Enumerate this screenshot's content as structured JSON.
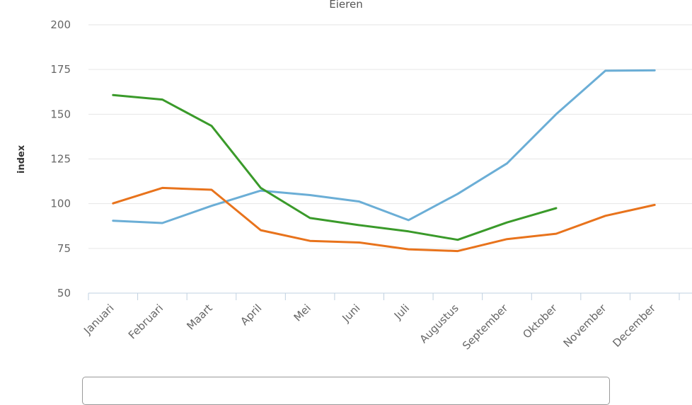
{
  "chart_data": {
    "type": "line",
    "title": "Eieren",
    "xlabel": "",
    "ylabel": "index",
    "ylim": [
      50,
      200
    ],
    "yticks": [
      50,
      75,
      100,
      125,
      150,
      175,
      200
    ],
    "categories": [
      "Januari",
      "Februari",
      "Maart",
      "April",
      "Mei",
      "Juni",
      "Juli",
      "Augustus",
      "September",
      "Oktober",
      "November",
      "December"
    ],
    "grid": true,
    "series": [
      {
        "color": "#6baed6",
        "values": [
          90.5,
          89.2,
          98.8,
          107.3,
          104.8,
          101.2,
          90.8,
          105.5,
          122.5,
          150.0,
          174.3,
          174.5
        ]
      },
      {
        "color": "#e8731c",
        "values": [
          100.2,
          108.8,
          107.8,
          85.2,
          79.2,
          78.3,
          74.5,
          73.5,
          80.2,
          83.2,
          93.2,
          99.3
        ]
      },
      {
        "color": "#3a9a2a",
        "values": [
          160.7,
          158.2,
          143.5,
          108.8,
          92.0,
          88.0,
          84.5,
          79.8,
          89.5,
          97.5,
          null,
          null
        ]
      }
    ]
  }
}
